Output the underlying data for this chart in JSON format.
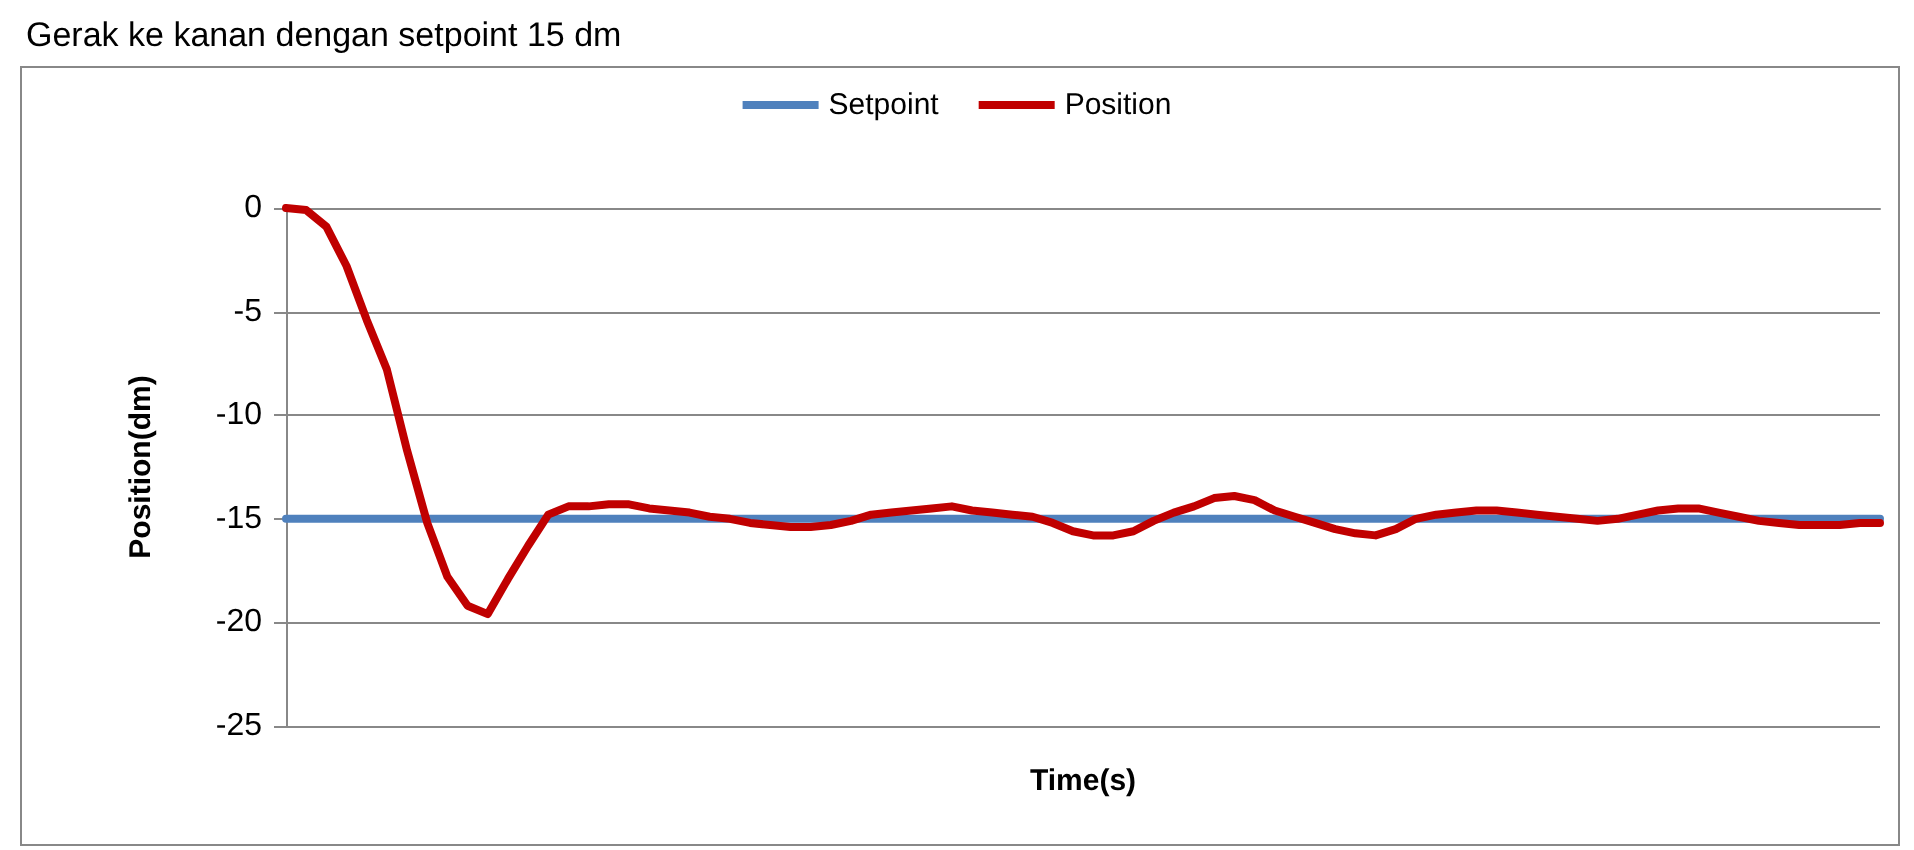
{
  "chart_data": {
    "type": "line",
    "title": "Gerak ke kanan dengan setpoint 15 dm",
    "xlabel": "Time(s)",
    "ylabel": "Position(dm)",
    "categories": [
      null,
      null,
      null,
      null,
      null,
      null,
      null,
      null,
      null,
      null,
      null,
      null,
      null,
      null,
      null,
      null,
      null,
      null,
      null,
      null,
      null,
      null,
      null,
      null,
      null,
      null,
      null,
      null,
      null,
      null,
      null,
      null,
      null,
      null,
      null,
      null,
      null,
      null,
      null,
      null,
      null,
      null,
      null,
      null,
      null,
      null,
      null,
      null,
      null,
      null,
      null,
      null,
      null,
      null,
      null,
      null,
      null,
      null,
      null,
      null,
      null,
      null,
      null,
      null,
      null,
      null,
      null,
      null,
      null,
      null,
      null,
      null,
      null,
      null,
      null,
      null,
      null,
      null,
      null,
      null
    ],
    "series": [
      {
        "name": "Setpoint",
        "color": "#4f81bd",
        "values": [
          -15,
          -15,
          -15,
          -15,
          -15,
          -15,
          -15,
          -15,
          -15,
          -15,
          -15,
          -15,
          -15,
          -15,
          -15,
          -15,
          -15,
          -15,
          -15,
          -15,
          -15,
          -15,
          -15,
          -15,
          -15,
          -15,
          -15,
          -15,
          -15,
          -15,
          -15,
          -15,
          -15,
          -15,
          -15,
          -15,
          -15,
          -15,
          -15,
          -15,
          -15,
          -15,
          -15,
          -15,
          -15,
          -15,
          -15,
          -15,
          -15,
          -15,
          -15,
          -15,
          -15,
          -15,
          -15,
          -15,
          -15,
          -15,
          -15,
          -15,
          -15,
          -15,
          -15,
          -15,
          -15,
          -15,
          -15,
          -15,
          -15,
          -15,
          -15,
          -15,
          -15,
          -15,
          -15,
          -15,
          -15,
          -15,
          -15,
          -15
        ]
      },
      {
        "name": "Position",
        "color": "#c00000",
        "values": [
          0,
          -0.1,
          -0.9,
          -2.8,
          -5.4,
          -7.8,
          -11.7,
          -15.2,
          -17.8,
          -19.2,
          -19.6,
          -17.9,
          -16.3,
          -14.8,
          -14.4,
          -14.4,
          -14.3,
          -14.3,
          -14.5,
          -14.6,
          -14.7,
          -14.9,
          -15.0,
          -15.2,
          -15.3,
          -15.4,
          -15.4,
          -15.3,
          -15.1,
          -14.8,
          -14.7,
          -14.6,
          -14.5,
          -14.4,
          -14.6,
          -14.7,
          -14.8,
          -14.9,
          -15.2,
          -15.6,
          -15.8,
          -15.8,
          -15.6,
          -15.1,
          -14.7,
          -14.4,
          -14.0,
          -13.9,
          -14.1,
          -14.6,
          -14.9,
          -15.2,
          -15.5,
          -15.7,
          -15.8,
          -15.5,
          -15.0,
          -14.8,
          -14.7,
          -14.6,
          -14.6,
          -14.7,
          -14.8,
          -14.9,
          -15.0,
          -15.1,
          -15.0,
          -14.8,
          -14.6,
          -14.5,
          -14.5,
          -14.7,
          -14.9,
          -15.1,
          -15.2,
          -15.3,
          -15.3,
          -15.3,
          -15.2,
          -15.2
        ]
      }
    ],
    "ylim": [
      -25,
      0
    ],
    "yticks": [
      -25,
      -20,
      -15,
      -10,
      -5,
      0
    ],
    "grid": "y",
    "legend": "top",
    "marker": "none",
    "line_style": "solid"
  }
}
